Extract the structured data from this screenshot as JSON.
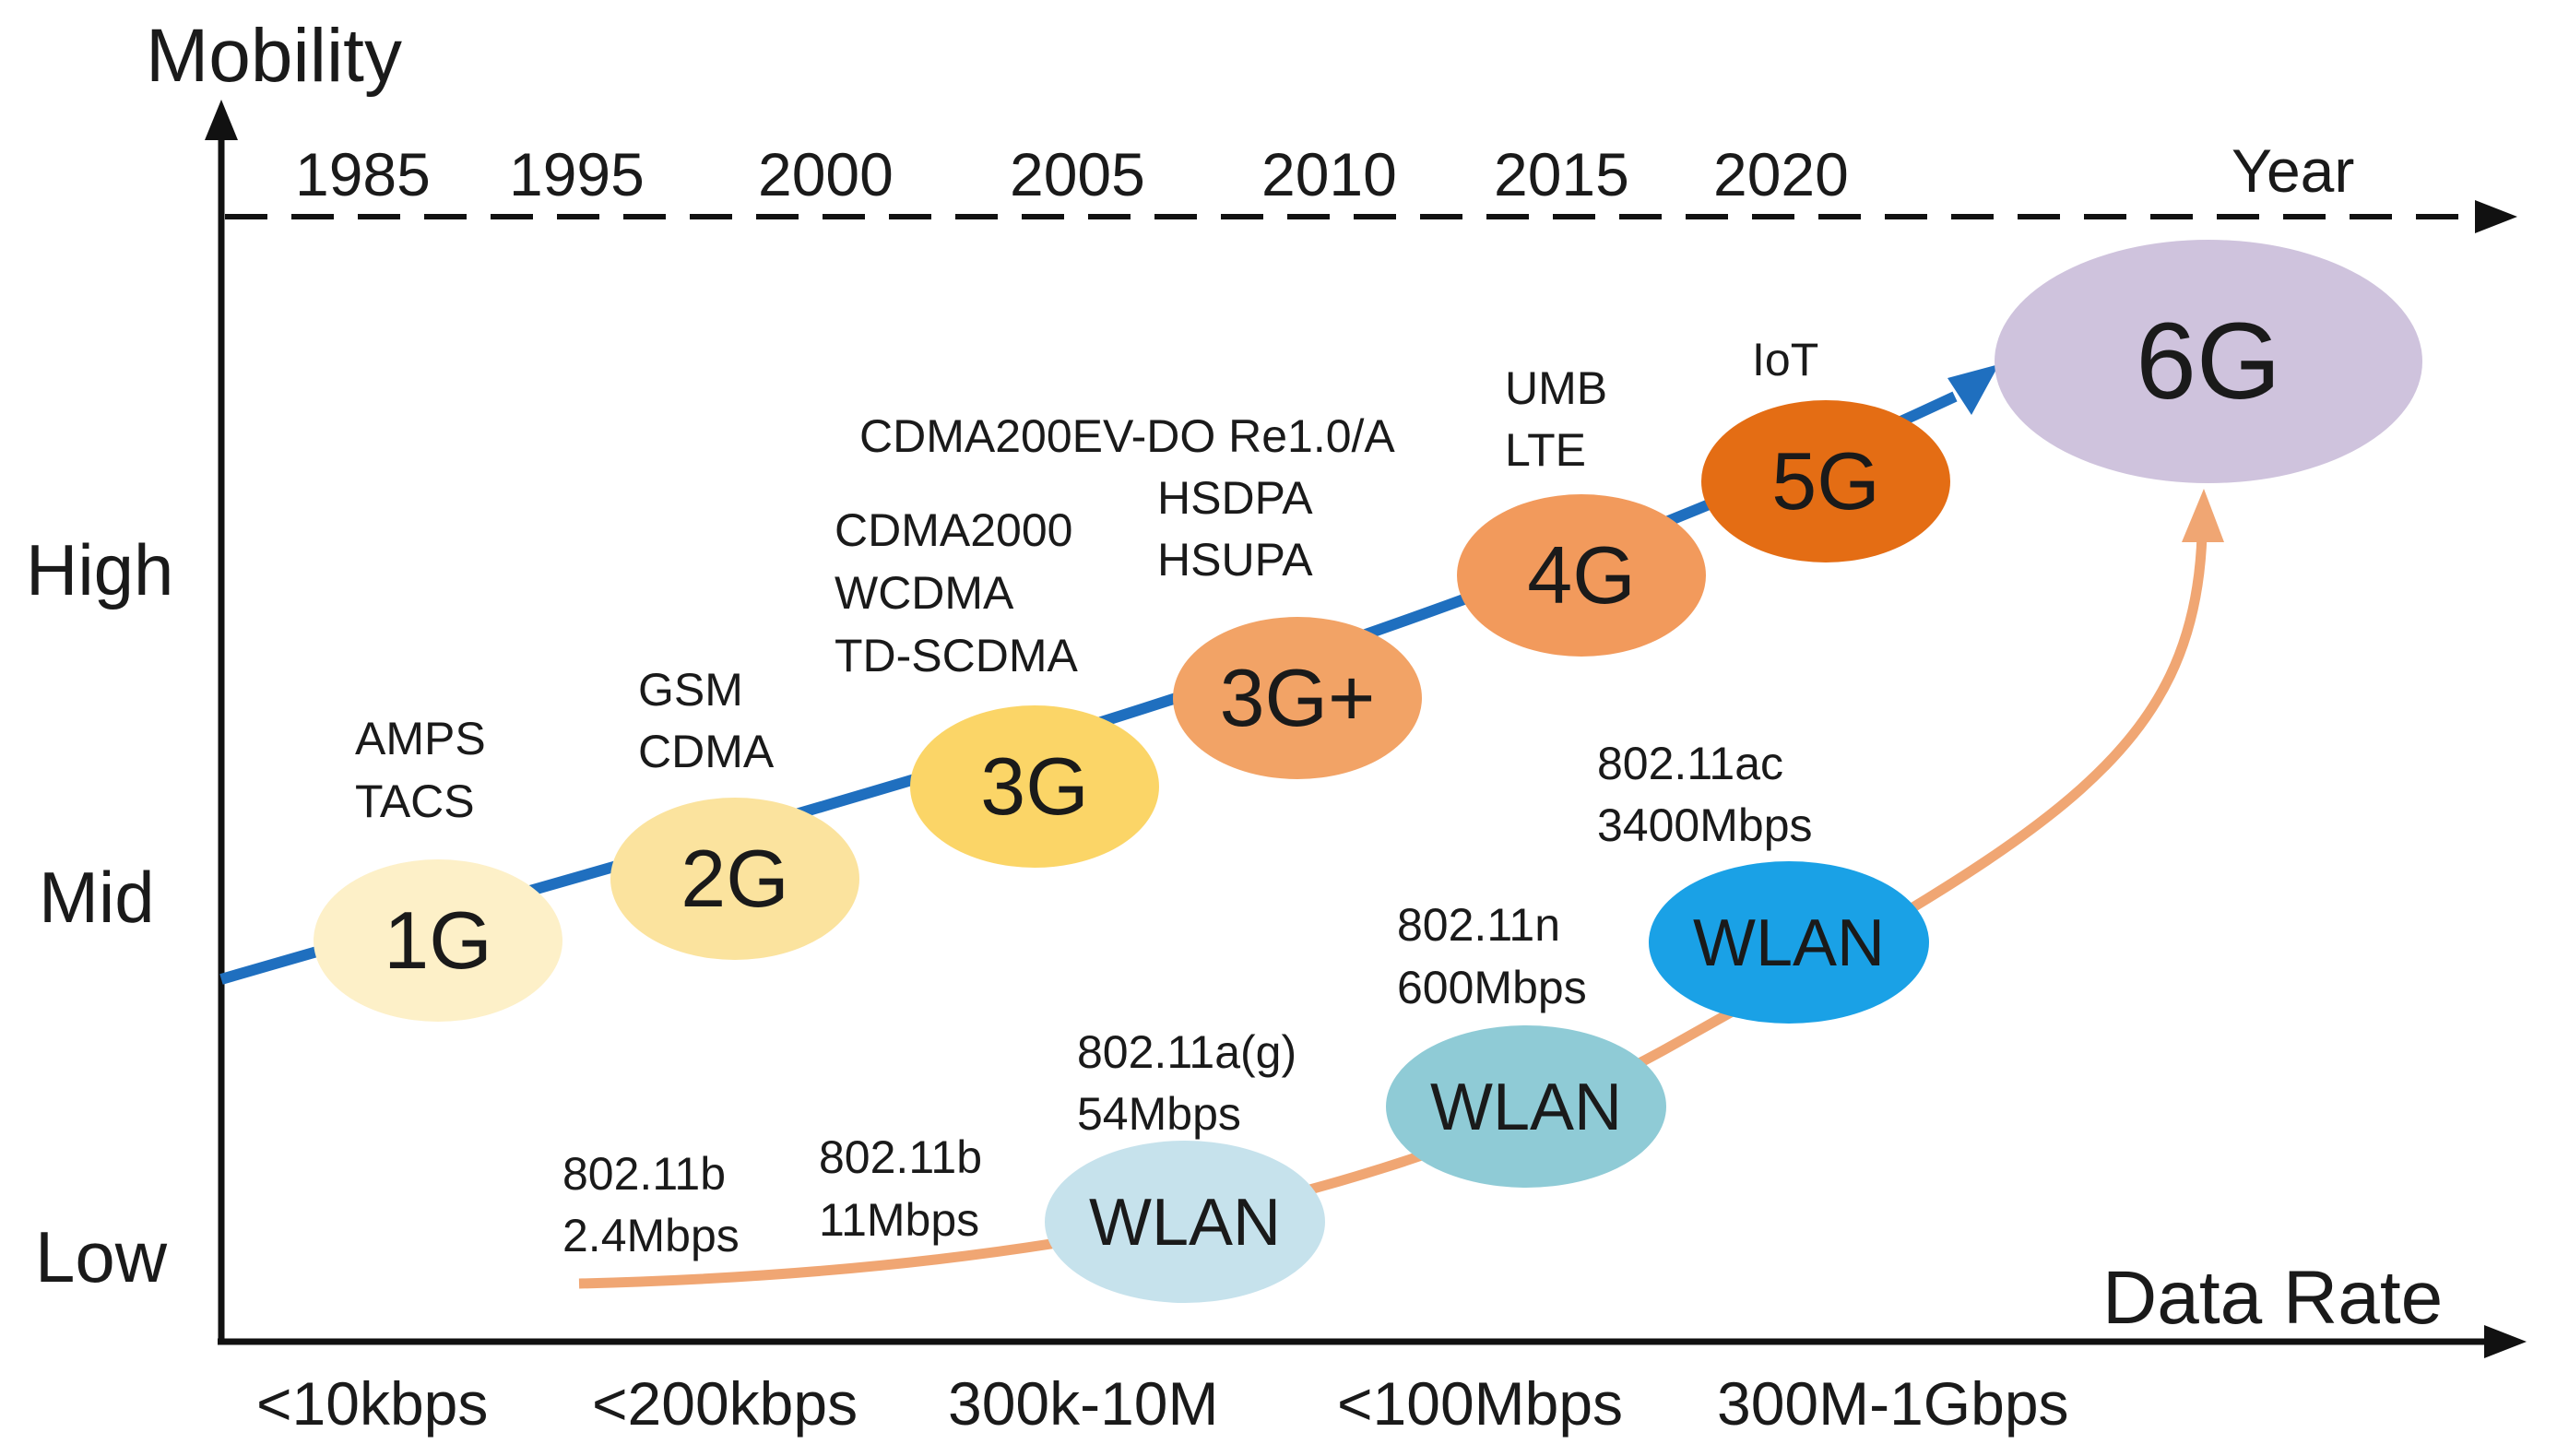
{
  "axes": {
    "y_title": "Mobility",
    "x_title": "Data Rate",
    "timeline_title": "Year"
  },
  "years": [
    "1985",
    "1995",
    "2000",
    "2005",
    "2010",
    "2015",
    "2020"
  ],
  "mobility_levels": {
    "high": "High",
    "mid": "Mid",
    "low": "Low"
  },
  "data_rates": [
    "<10kbps",
    "<200kbps",
    "300k-10M",
    "<100Mbps",
    "300M-1Gbps"
  ],
  "generations": [
    {
      "id": "1g",
      "label": "1G",
      "color": "#fdf0c8",
      "tech": [
        "AMPS",
        "TACS"
      ]
    },
    {
      "id": "2g",
      "label": "2G",
      "color": "#fbe39e",
      "tech": [
        "GSM",
        "CDMA"
      ]
    },
    {
      "id": "3g",
      "label": "3G",
      "color": "#fbd567",
      "tech": [
        "CDMA2000",
        "WCDMA",
        "TD-SCDMA"
      ]
    },
    {
      "id": "3g-plus",
      "label": "3G+",
      "color": "#f2a366",
      "tech": [
        "CDMA200EV-DO Re1.0/A",
        "HSDPA",
        "HSUPA"
      ]
    },
    {
      "id": "4g",
      "label": "4G",
      "color": "#f29a5c",
      "tech": [
        "UMB",
        "LTE"
      ]
    },
    {
      "id": "5g",
      "label": "5G",
      "color": "#e46d14",
      "tech": [
        "IoT"
      ]
    },
    {
      "id": "6g",
      "label": "6G",
      "color": "#cfc3dd",
      "tech": []
    }
  ],
  "wlan": [
    {
      "id": "wlan-a",
      "label": "WLAN",
      "color": "#c6e2ec",
      "tech": [
        "802.11a(g)",
        "54Mbps"
      ]
    },
    {
      "id": "wlan-n",
      "label": "WLAN",
      "color": "#8fcbd6",
      "tech": [
        "802.11n",
        "600Mbps"
      ]
    },
    {
      "id": "wlan-ac",
      "label": "WLAN",
      "color": "#1aa1e6",
      "tech": [
        "802.11ac",
        "3400Mbps"
      ]
    }
  ],
  "wlan_early": [
    {
      "tech": [
        "802.11b",
        "2.4Mbps"
      ]
    },
    {
      "tech": [
        "802.11b",
        "11Mbps"
      ]
    }
  ],
  "colors": {
    "cellular_curve": "#1f6fbf",
    "wlan_curve": "#f0a673",
    "axis": "#111111"
  }
}
